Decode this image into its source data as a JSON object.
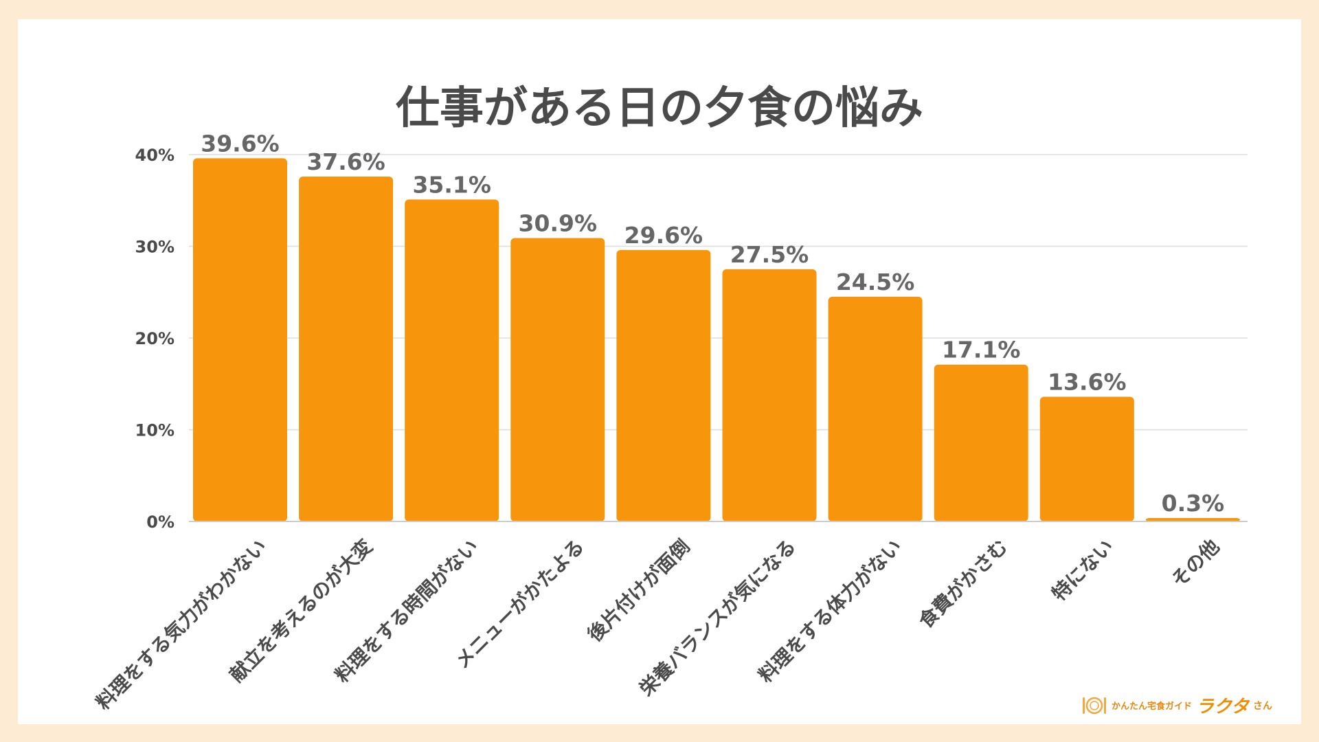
{
  "chart_data": {
    "type": "bar",
    "title": "仕事がある日の夕食の悩み",
    "categories": [
      "料理をする気力がわかない",
      "献立を考えるのが大変",
      "料理をする時間がない",
      "メニューがかたよる",
      "後片付けが面倒",
      "栄養バランスが気になる",
      "料理をする体力がない",
      "食費がかさむ",
      "特にない",
      "その他"
    ],
    "values": [
      39.6,
      37.6,
      35.1,
      30.9,
      29.6,
      27.5,
      24.5,
      17.1,
      13.6,
      0.3
    ],
    "value_labels": [
      "39.6%",
      "37.6%",
      "35.1%",
      "30.9%",
      "29.6%",
      "27.5%",
      "24.5%",
      "17.1%",
      "13.6%",
      "0.3%"
    ],
    "yticks": [
      0,
      10,
      20,
      30,
      40
    ],
    "ytick_labels": [
      "0%",
      "10%",
      "20%",
      "30%",
      "40%"
    ],
    "ylim": [
      0,
      40
    ],
    "grid": true,
    "legend": "none",
    "bar_color": "#f7960d",
    "xlabel": "",
    "ylabel": ""
  },
  "logo": {
    "sub": "かんたん宅食ガイド",
    "main": "ラクタ",
    "san": "さん",
    "color": "#f28c00"
  }
}
